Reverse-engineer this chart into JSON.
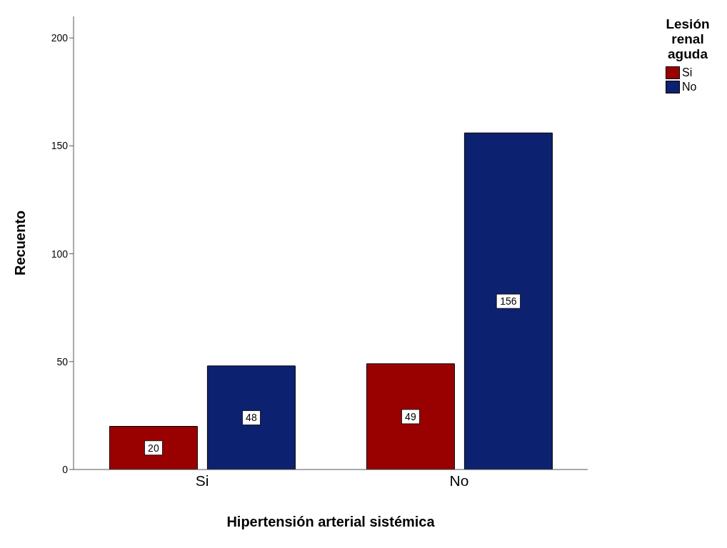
{
  "chart_data": {
    "type": "bar",
    "xlabel": "Hipertensión arterial sistémica",
    "ylabel": "Recuento",
    "legend_title": "Lesión renal aguda",
    "categories": [
      "Si",
      "No"
    ],
    "series": [
      {
        "name": "Si",
        "color": "#990000",
        "values": [
          20,
          49
        ]
      },
      {
        "name": "No",
        "color": "#0c2270",
        "values": [
          48,
          156
        ]
      }
    ],
    "ylim": [
      0,
      210
    ],
    "yticks": [
      0,
      50,
      100,
      150,
      200
    ],
    "data_labels": true,
    "legend": "top right",
    "grid": false
  }
}
